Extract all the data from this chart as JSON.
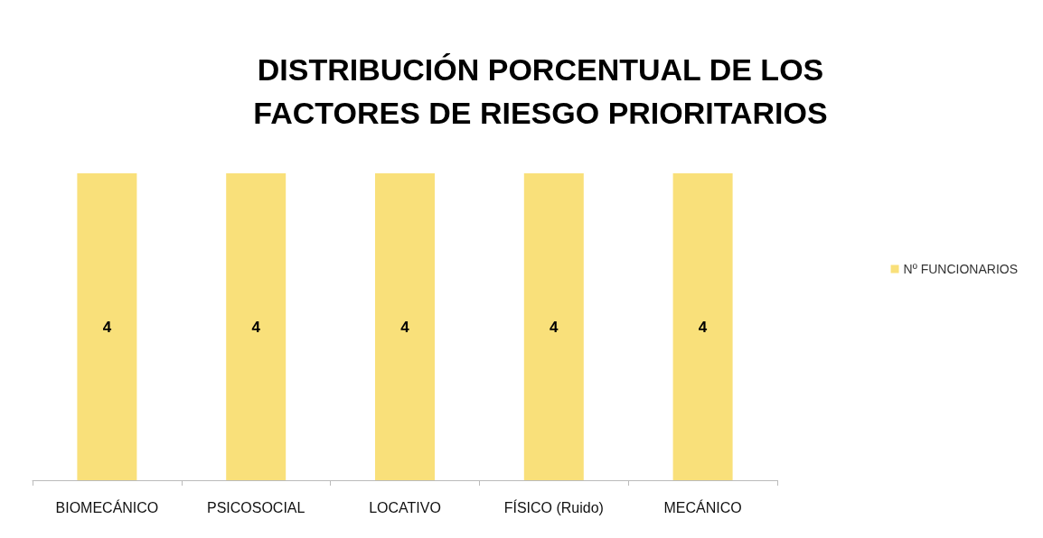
{
  "chart_data": {
    "type": "bar",
    "title": "DISTRIBUCIÓN PORCENTUAL DE LOS\nFACTORES DE RIESGO PRIORITARIOS",
    "categories": [
      "BIOMECÁNICO",
      "PSICOSOCIAL",
      "LOCATIVO",
      "FÍSICO (Ruido)",
      "MECÁNICO"
    ],
    "series": [
      {
        "name": "Nº FUNCIONARIOS",
        "color": "#f9e07a",
        "values": [
          4,
          4,
          4,
          4,
          4
        ]
      }
    ],
    "data_labels": true,
    "legend": "right"
  }
}
